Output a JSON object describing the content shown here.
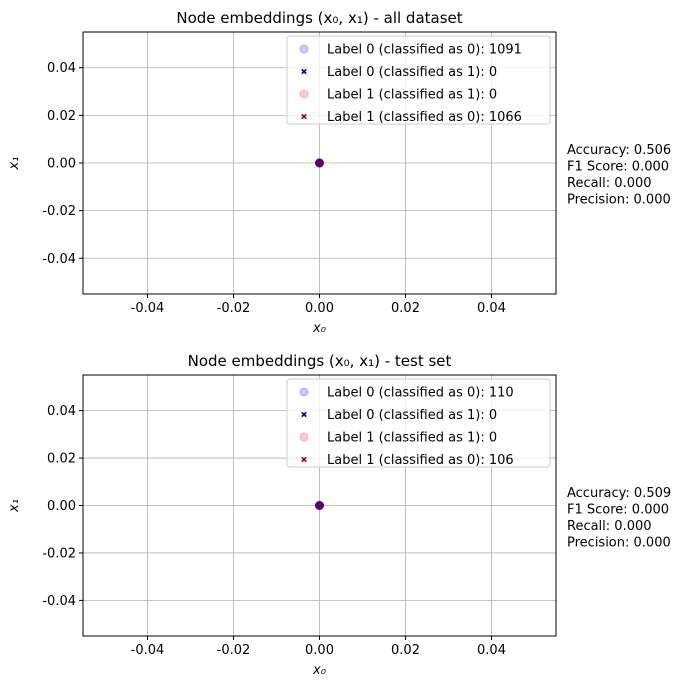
{
  "chart_data": [
    {
      "type": "scatter",
      "title": "Node embeddings (x₀, x₁) - all dataset",
      "xlabel": "x₀",
      "ylabel": "x₁",
      "xlim": [
        -0.055,
        0.055
      ],
      "ylim": [
        -0.055,
        0.055
      ],
      "xticks": [
        "-0.04",
        "-0.02",
        "0.00",
        "0.02",
        "0.04"
      ],
      "yticks": [
        "-0.04",
        "-0.02",
        "0.00",
        "0.02",
        "0.04"
      ],
      "xtick_values": [
        -0.04,
        -0.02,
        0.0,
        0.02,
        0.04
      ],
      "ytick_values": [
        -0.04,
        -0.02,
        0.0,
        0.02,
        0.04
      ],
      "grid": true,
      "legend_position": "top-right",
      "series": [
        {
          "name": "Label 0 (classified as 0): 1091",
          "marker": "circle",
          "color": "#0000ff",
          "points": [
            [
              0.0,
              0.0
            ]
          ]
        },
        {
          "name": "Label 0 (classified as 1): 0",
          "marker": "x",
          "color": "#00008b",
          "points": []
        },
        {
          "name": "Label 1 (classified as 1): 0",
          "marker": "circle",
          "color": "#ff0000",
          "points": []
        },
        {
          "name": "Label 1 (classified as 0): 1066",
          "marker": "x",
          "color": "#8b0000",
          "points": [
            [
              0.0,
              0.0
            ]
          ]
        }
      ],
      "metrics": [
        "Accuracy: 0.506",
        "F1 Score: 0.000",
        "Recall: 0.000",
        "Precision: 0.000"
      ]
    },
    {
      "type": "scatter",
      "title": "Node embeddings (x₀, x₁) - test set",
      "xlabel": "x₀",
      "ylabel": "x₁",
      "xlim": [
        -0.055,
        0.055
      ],
      "ylim": [
        -0.055,
        0.055
      ],
      "xticks": [
        "-0.04",
        "-0.02",
        "0.00",
        "0.02",
        "0.04"
      ],
      "yticks": [
        "-0.04",
        "-0.02",
        "0.00",
        "0.02",
        "0.04"
      ],
      "xtick_values": [
        -0.04,
        -0.02,
        0.0,
        0.02,
        0.04
      ],
      "ytick_values": [
        -0.04,
        -0.02,
        0.0,
        0.02,
        0.04
      ],
      "grid": true,
      "legend_position": "top-right",
      "series": [
        {
          "name": "Label 0 (classified as 0): 110",
          "marker": "circle",
          "color": "#0000ff",
          "points": [
            [
              0.0,
              0.0
            ]
          ]
        },
        {
          "name": "Label 0 (classified as 1): 0",
          "marker": "x",
          "color": "#00008b",
          "points": []
        },
        {
          "name": "Label 1 (classified as 1): 0",
          "marker": "circle",
          "color": "#ff0000",
          "points": []
        },
        {
          "name": "Label 1 (classified as 0): 106",
          "marker": "x",
          "color": "#8b0000",
          "points": [
            [
              0.0,
              0.0
            ]
          ]
        }
      ],
      "metrics": [
        "Accuracy: 0.509",
        "F1 Score: 0.000",
        "Recall: 0.000",
        "Precision: 0.000"
      ]
    }
  ]
}
